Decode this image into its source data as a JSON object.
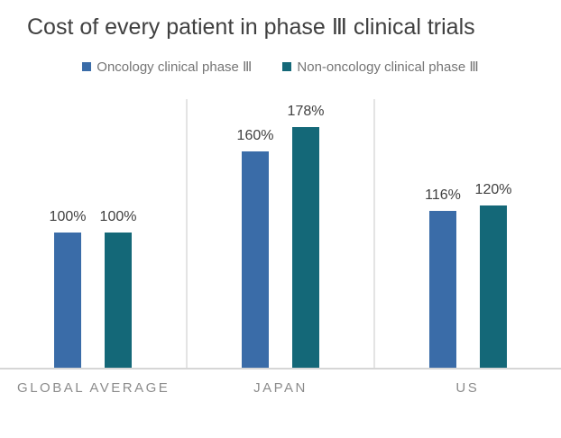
{
  "chart_data": {
    "type": "bar",
    "title": "Cost of every patient in phase Ⅲ clinical trials",
    "categories": [
      "GLOBAL AVERAGE",
      "JAPAN",
      "US"
    ],
    "series": [
      {
        "name": "Oncology clinical phase Ⅲ",
        "color": "#3A6CA8",
        "values": [
          100,
          160,
          116
        ]
      },
      {
        "name": "Non-oncology clinical phase Ⅲ",
        "color": "#146878",
        "values": [
          100,
          178,
          120
        ]
      }
    ],
    "value_suffix": "%",
    "value_labels": [
      [
        "100%",
        "160%",
        "116%"
      ],
      [
        "100%",
        "178%",
        "120%"
      ]
    ],
    "xlabel": "",
    "ylabel": "",
    "ylim": [
      0,
      200
    ],
    "grid": "vertical-category-separators-only",
    "legend_position": "top-center",
    "background_color": "#FFFFFF"
  }
}
